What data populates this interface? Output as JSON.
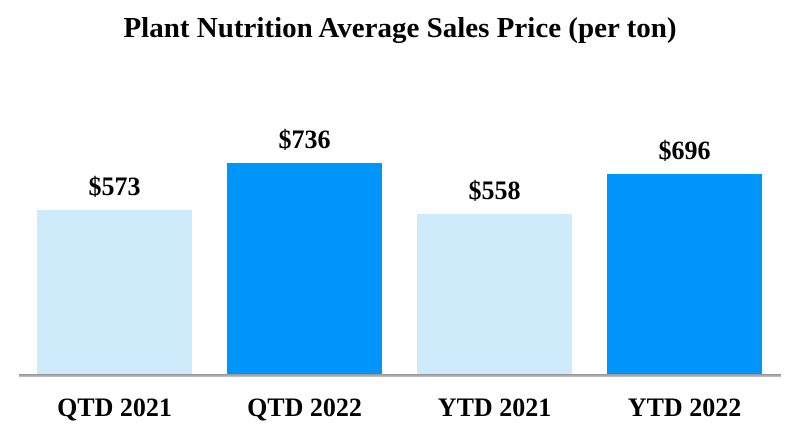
{
  "chart_data": {
    "type": "bar",
    "title": "Plant Nutrition Average Sales Price (per ton)",
    "categories": [
      "QTD 2021",
      "QTD 2022",
      "YTD 2021",
      "YTD 2022"
    ],
    "values": [
      573,
      736,
      558,
      696
    ],
    "value_labels": [
      "$573",
      "$736",
      "$558",
      "$696"
    ],
    "bar_colors": [
      "#CDEBFB",
      "#0095FA",
      "#CDEBFB",
      "#0095FA"
    ],
    "series_colors": {
      "year_2021": "#CDEBFB",
      "year_2022": "#0095FA"
    },
    "axis_line_color": "#A6A6A6",
    "background_color": "#FFFFFF",
    "grid": false,
    "legend": false,
    "y_axis_visible": false,
    "value_label_position": "above-bar"
  }
}
